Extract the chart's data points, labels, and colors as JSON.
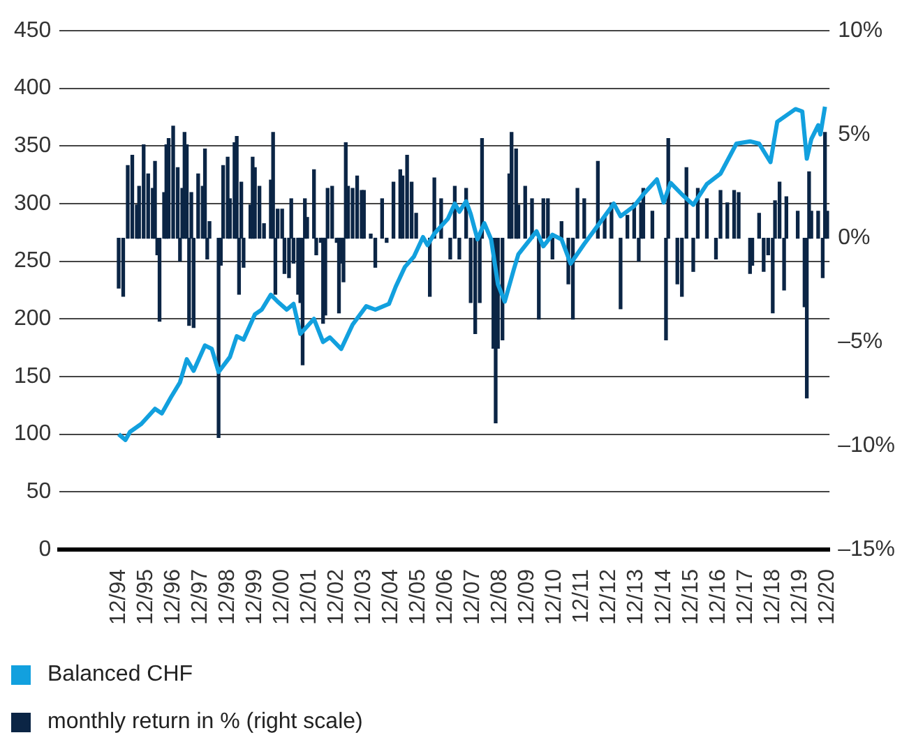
{
  "chart_data": {
    "type": "line",
    "series": [
      {
        "name": "Balanced CHF",
        "color": "#12a0de",
        "x": [
          "1994-12",
          "1995-03",
          "1995-05",
          "1995-10",
          "1996-04",
          "1996-07",
          "1996-11",
          "1997-03",
          "1997-06",
          "1997-09",
          "1998-02",
          "1998-05",
          "1998-08",
          "1999-01",
          "1999-04",
          "1999-07",
          "1999-12",
          "2000-03",
          "2000-07",
          "2000-10",
          "2001-02",
          "2001-05",
          "2001-08",
          "2002-02",
          "2002-06",
          "2002-09",
          "2003-02",
          "2003-07",
          "2004-01",
          "2004-05",
          "2004-11",
          "2005-02",
          "2005-06",
          "2005-10",
          "2006-02",
          "2006-04",
          "2006-07",
          "2007-01",
          "2007-04",
          "2007-06",
          "2007-09",
          "2007-11",
          "2008-02",
          "2008-05",
          "2008-08",
          "2008-11",
          "2009-02",
          "2009-06",
          "2009-08",
          "2010-04",
          "2010-07",
          "2010-11",
          "2011-03",
          "2011-07",
          "2012-01",
          "2012-07",
          "2013-02",
          "2013-05",
          "2013-11",
          "2014-03",
          "2014-09",
          "2014-12",
          "2015-03",
          "2015-08",
          "2016-01",
          "2016-07",
          "2017-01",
          "2017-08",
          "2018-02",
          "2018-06",
          "2018-11",
          "2019-02",
          "2019-10",
          "2020-01",
          "2020-03",
          "2020-05",
          "2020-08",
          "2020-09",
          "2020-11"
        ],
        "values": [
          100,
          95,
          102,
          109,
          122,
          118,
          132,
          145,
          165,
          155,
          177,
          174,
          154,
          167,
          185,
          182,
          204,
          208,
          221,
          215,
          208,
          213,
          187,
          200,
          180,
          184,
          174,
          195,
          211,
          208,
          213,
          228,
          245,
          254,
          271,
          264,
          274,
          287,
          300,
          293,
          302,
          291,
          269,
          283,
          269,
          230,
          215,
          243,
          256,
          276,
          263,
          273,
          269,
          248,
          265,
          281,
          300,
          289,
          298,
          308,
          321,
          301,
          318,
          308,
          299,
          317,
          326,
          352,
          354,
          352,
          336,
          371,
          382,
          380,
          339,
          356,
          368,
          360,
          384
        ]
      },
      {
        "name": "monthly return in % (right scale)",
        "type": "bar",
        "axis": "y2",
        "color": "#0b2545",
        "x": [
          "1994-12",
          "1995-02",
          "1995-04",
          "1995-06",
          "1995-08",
          "1995-09",
          "1995-11",
          "1996-01",
          "1996-03",
          "1996-04",
          "1996-05",
          "1996-06",
          "1996-08",
          "1996-09",
          "1996-10",
          "1996-12",
          "1997-02",
          "1997-03",
          "1997-04",
          "1997-05",
          "1997-06",
          "1997-07",
          "1997-08",
          "1997-09",
          "1997-11",
          "1998-01",
          "1998-02",
          "1998-03",
          "1998-04",
          "1998-08",
          "1998-09",
          "1998-10",
          "1998-12",
          "1999-01",
          "1999-03",
          "1999-04",
          "1999-05",
          "1999-06",
          "1999-07",
          "1999-10",
          "1999-11",
          "1999-12",
          "2000-02",
          "2000-04",
          "2000-07",
          "2000-08",
          "2000-09",
          "2000-10",
          "2000-12",
          "2001-01",
          "2001-03",
          "2001-04",
          "2001-05",
          "2001-07",
          "2001-08",
          "2001-09",
          "2001-10",
          "2001-11",
          "2002-02",
          "2002-03",
          "2002-05",
          "2002-06",
          "2002-07",
          "2002-08",
          "2002-10",
          "2002-12",
          "2003-01",
          "2003-02",
          "2003-03",
          "2003-04",
          "2003-05",
          "2003-07",
          "2003-09",
          "2003-11",
          "2003-12",
          "2004-03",
          "2004-05",
          "2004-08",
          "2004-10",
          "2005-01",
          "2005-04",
          "2005-05",
          "2005-07",
          "2005-09",
          "2005-11",
          "2006-05",
          "2006-07",
          "2006-10",
          "2007-02",
          "2007-04",
          "2007-06",
          "2007-09",
          "2007-11",
          "2008-01",
          "2008-03",
          "2008-04",
          "2008-09",
          "2008-10",
          "2008-11",
          "2009-01",
          "2009-04",
          "2009-05",
          "2009-07",
          "2009-08",
          "2009-11",
          "2010-02",
          "2010-05",
          "2010-07",
          "2010-09",
          "2010-11",
          "2011-03",
          "2011-06",
          "2011-08",
          "2011-10",
          "2012-01",
          "2012-07",
          "2012-10",
          "2013-01",
          "2013-05",
          "2013-08",
          "2013-11",
          "2014-01",
          "2014-02",
          "2014-03",
          "2014-07",
          "2015-01",
          "2015-02",
          "2015-06",
          "2015-08",
          "2015-10",
          "2016-01",
          "2016-03",
          "2016-07",
          "2016-11",
          "2017-01",
          "2017-04",
          "2017-07",
          "2017-09",
          "2018-02",
          "2018-03",
          "2018-06",
          "2018-08",
          "2018-10",
          "2018-12",
          "2019-01",
          "2019-03",
          "2019-05",
          "2019-06",
          "2019-11",
          "2020-02",
          "2020-03",
          "2020-04",
          "2020-05",
          "2020-08",
          "2020-10",
          "2020-11",
          "2020-12"
        ],
        "values": [
          -2.4,
          -2.8,
          3.5,
          4.0,
          1.6,
          2.5,
          4.5,
          3.1,
          2.4,
          3.7,
          -0.8,
          -4.0,
          2.2,
          4.5,
          4.8,
          5.4,
          3.4,
          -1.1,
          2.4,
          5.1,
          4.5,
          -4.2,
          2.2,
          -4.3,
          3.1,
          2.5,
          4.3,
          -1.0,
          0.8,
          -9.6,
          -1.3,
          3.5,
          3.9,
          1.9,
          4.6,
          4.9,
          -2.7,
          2.7,
          -1.4,
          1.6,
          3.9,
          3.4,
          2.5,
          0.7,
          2.8,
          5.1,
          -2.7,
          1.4,
          1.4,
          -1.7,
          -1.9,
          1.9,
          -1.2,
          -2.7,
          -3.1,
          -6.1,
          1.9,
          1.0,
          3.3,
          -0.8,
          -0.2,
          -4.1,
          -3.7,
          2.4,
          2.5,
          -0.2,
          -3.6,
          -1.2,
          -2.1,
          4.6,
          2.5,
          2.4,
          3.0,
          2.3,
          2.3,
          0.2,
          -1.4,
          1.9,
          -0.2,
          2.7,
          3.3,
          3.0,
          4.0,
          2.7,
          1.2,
          -2.8,
          2.9,
          1.9,
          -1.0,
          2.5,
          -1.0,
          2.4,
          -3.1,
          -4.6,
          -3.1,
          4.8,
          -5.3,
          -8.9,
          -5.3,
          -4.9,
          3.1,
          5.1,
          4.3,
          1.6,
          2.5,
          1.9,
          -3.9,
          1.9,
          1.9,
          -1.0,
          0.8,
          -2.2,
          -3.9,
          2.4,
          1.9,
          3.7,
          1.0,
          1.7,
          -3.4,
          1.1,
          1.7,
          -1.1,
          1.7,
          2.4,
          1.3,
          -4.9,
          4.8,
          -2.2,
          -2.8,
          3.4,
          -1.6,
          2.4,
          1.9,
          -1.0,
          2.3,
          1.7,
          2.3,
          2.2,
          -1.7,
          -1.3,
          1.2,
          -1.6,
          -0.8,
          -3.6,
          1.8,
          2.7,
          -2.5,
          2.0,
          1.3,
          -3.3,
          -7.7,
          3.2,
          1.3,
          1.3,
          -1.9,
          5.1,
          1.3
        ]
      }
    ],
    "xlim": [
      "1992-10",
      "2021-01"
    ],
    "xticks": [
      {
        "value": "1994-12",
        "label": "12/94"
      },
      {
        "value": "1995-12",
        "label": "12/95"
      },
      {
        "value": "1996-12",
        "label": "12/96"
      },
      {
        "value": "1997-12",
        "label": "12/97"
      },
      {
        "value": "1998-12",
        "label": "12/98"
      },
      {
        "value": "1999-12",
        "label": "12/99"
      },
      {
        "value": "2000-12",
        "label": "12/00"
      },
      {
        "value": "2001-12",
        "label": "12/01"
      },
      {
        "value": "2002-12",
        "label": "12/02"
      },
      {
        "value": "2003-12",
        "label": "12/03"
      },
      {
        "value": "2004-12",
        "label": "12/04"
      },
      {
        "value": "2005-12",
        "label": "12/05"
      },
      {
        "value": "2006-12",
        "label": "12/06"
      },
      {
        "value": "2007-12",
        "label": "12/07"
      },
      {
        "value": "2008-12",
        "label": "12/08"
      },
      {
        "value": "2009-12",
        "label": "12/09"
      },
      {
        "value": "2010-12",
        "label": "12/10"
      },
      {
        "value": "2011-12",
        "label": "12/11"
      },
      {
        "value": "2012-12",
        "label": "12/12"
      },
      {
        "value": "2013-12",
        "label": "12/13"
      },
      {
        "value": "2014-12",
        "label": "12/14"
      },
      {
        "value": "2015-12",
        "label": "12/15"
      },
      {
        "value": "2016-12",
        "label": "12/16"
      },
      {
        "value": "2017-12",
        "label": "12/17"
      },
      {
        "value": "2018-12",
        "label": "12/18"
      },
      {
        "value": "2019-12",
        "label": "12/19"
      },
      {
        "value": "2020-12",
        "label": "12/20"
      }
    ],
    "ylim": [
      0,
      450
    ],
    "yticks": [
      0,
      50,
      100,
      150,
      200,
      250,
      300,
      350,
      400,
      450
    ],
    "y2lim": [
      -15,
      10
    ],
    "y2ticks": [
      {
        "value": -15,
        "label": "–15%"
      },
      {
        "value": -10,
        "label": "–10%"
      },
      {
        "value": -5,
        "label": "–5%"
      },
      {
        "value": 0,
        "label": "0%"
      },
      {
        "value": 5,
        "label": "5%"
      },
      {
        "value": 10,
        "label": "10%"
      }
    ],
    "grid": "y",
    "legend": "bottom"
  }
}
